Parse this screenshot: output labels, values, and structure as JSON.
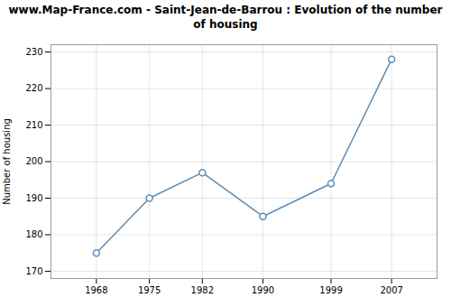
{
  "chart_data": {
    "type": "line",
    "title": "www.Map-France.com - Saint-Jean-de-Barrou : Evolution of the number of housing",
    "x": [
      1968,
      1975,
      1982,
      1990,
      1999,
      2007
    ],
    "values": [
      175,
      190,
      197,
      185,
      194,
      228
    ],
    "ylabel": "Number of housing",
    "xlim": [
      1962,
      2013
    ],
    "xticks": [
      1968,
      1975,
      1982,
      1990,
      1999,
      2007
    ],
    "ylim": [
      168,
      232
    ],
    "yticks": [
      170,
      180,
      190,
      200,
      210,
      220,
      230
    ],
    "grid": true,
    "color": "#5b8db8",
    "marker": "circle"
  }
}
